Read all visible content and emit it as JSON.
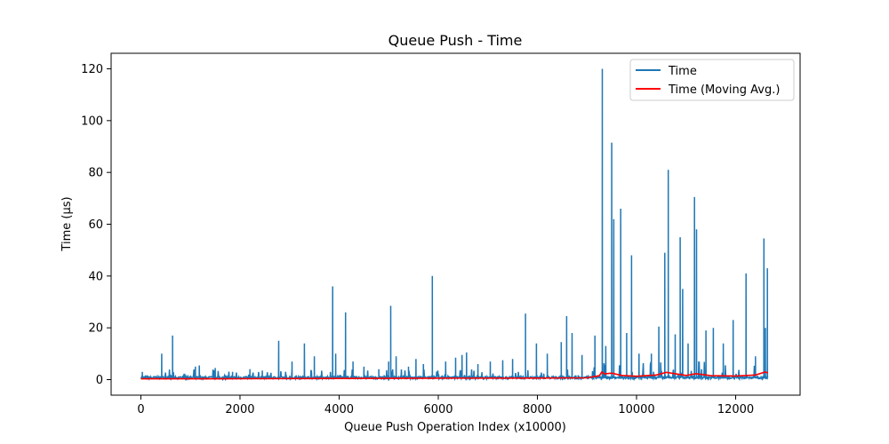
{
  "chart_data": {
    "type": "line",
    "title": "Queue Push - Time",
    "xlabel": "Queue Push Operation Index (x10000)",
    "ylabel": "Time (µs)",
    "xlim": [
      -600,
      13300
    ],
    "ylim": [
      -6,
      126
    ],
    "x_ticks": [
      0,
      2000,
      4000,
      6000,
      8000,
      10000,
      12000
    ],
    "y_ticks": [
      0,
      20,
      40,
      60,
      80,
      100,
      120
    ],
    "grid": false,
    "legend_position": "top-right",
    "x_max": 12650,
    "series": [
      {
        "name": "Time",
        "color": "#1f77b4",
        "baseline": 0.8,
        "spikes": [
          [
            30,
            3
          ],
          [
            420,
            10
          ],
          [
            640,
            17
          ],
          [
            1100,
            5
          ],
          [
            1180,
            5.5
          ],
          [
            1500,
            4.5
          ],
          [
            1850,
            3
          ],
          [
            2200,
            4
          ],
          [
            2450,
            3.5
          ],
          [
            2780,
            15
          ],
          [
            3050,
            7
          ],
          [
            3300,
            14
          ],
          [
            3500,
            9
          ],
          [
            3870,
            36
          ],
          [
            3930,
            10
          ],
          [
            4130,
            26
          ],
          [
            4280,
            7
          ],
          [
            4500,
            5
          ],
          [
            4800,
            4
          ],
          [
            5000,
            7
          ],
          [
            5040,
            28.5
          ],
          [
            5150,
            9
          ],
          [
            5400,
            5
          ],
          [
            5550,
            8
          ],
          [
            5700,
            6
          ],
          [
            5880,
            40
          ],
          [
            6150,
            7
          ],
          [
            6350,
            8.5
          ],
          [
            6480,
            9.5
          ],
          [
            6570,
            10.5
          ],
          [
            6800,
            6
          ],
          [
            7050,
            7
          ],
          [
            7300,
            7.5
          ],
          [
            7500,
            8
          ],
          [
            7760,
            25.5
          ],
          [
            7980,
            14
          ],
          [
            8200,
            10
          ],
          [
            8480,
            14.5
          ],
          [
            8590,
            24.5
          ],
          [
            8700,
            18
          ],
          [
            8900,
            9.5
          ],
          [
            9160,
            17
          ],
          [
            9310,
            120
          ],
          [
            9380,
            13
          ],
          [
            9500,
            91.5
          ],
          [
            9540,
            62
          ],
          [
            9680,
            66
          ],
          [
            9800,
            18
          ],
          [
            9900,
            48
          ],
          [
            10050,
            10
          ],
          [
            10300,
            10
          ],
          [
            10450,
            20.5
          ],
          [
            10570,
            49
          ],
          [
            10640,
            81
          ],
          [
            10780,
            17.5
          ],
          [
            10880,
            55
          ],
          [
            10930,
            35
          ],
          [
            11040,
            14
          ],
          [
            11170,
            70.5
          ],
          [
            11210,
            58
          ],
          [
            11400,
            19
          ],
          [
            11550,
            20
          ],
          [
            11750,
            14
          ],
          [
            11950,
            23
          ],
          [
            12210,
            41
          ],
          [
            12400,
            9
          ],
          [
            12570,
            54.5
          ],
          [
            12640,
            43
          ],
          [
            12600,
            20
          ]
        ]
      },
      {
        "name": "Time (Moving Avg.)",
        "color": "#ff0000",
        "points": [
          [
            0,
            0.3
          ],
          [
            2000,
            0.35
          ],
          [
            4000,
            0.45
          ],
          [
            6000,
            0.55
          ],
          [
            8000,
            0.6
          ],
          [
            9000,
            0.7
          ],
          [
            9250,
            1.5
          ],
          [
            9300,
            3
          ],
          [
            9350,
            2.2
          ],
          [
            9500,
            2.5
          ],
          [
            9700,
            1.6
          ],
          [
            10000,
            1.3
          ],
          [
            10400,
            1.8
          ],
          [
            10600,
            2.8
          ],
          [
            10800,
            2.2
          ],
          [
            11000,
            1.6
          ],
          [
            11200,
            2.3
          ],
          [
            11500,
            1.5
          ],
          [
            12000,
            1.4
          ],
          [
            12400,
            1.8
          ],
          [
            12600,
            3
          ],
          [
            12650,
            2.5
          ]
        ]
      }
    ]
  }
}
